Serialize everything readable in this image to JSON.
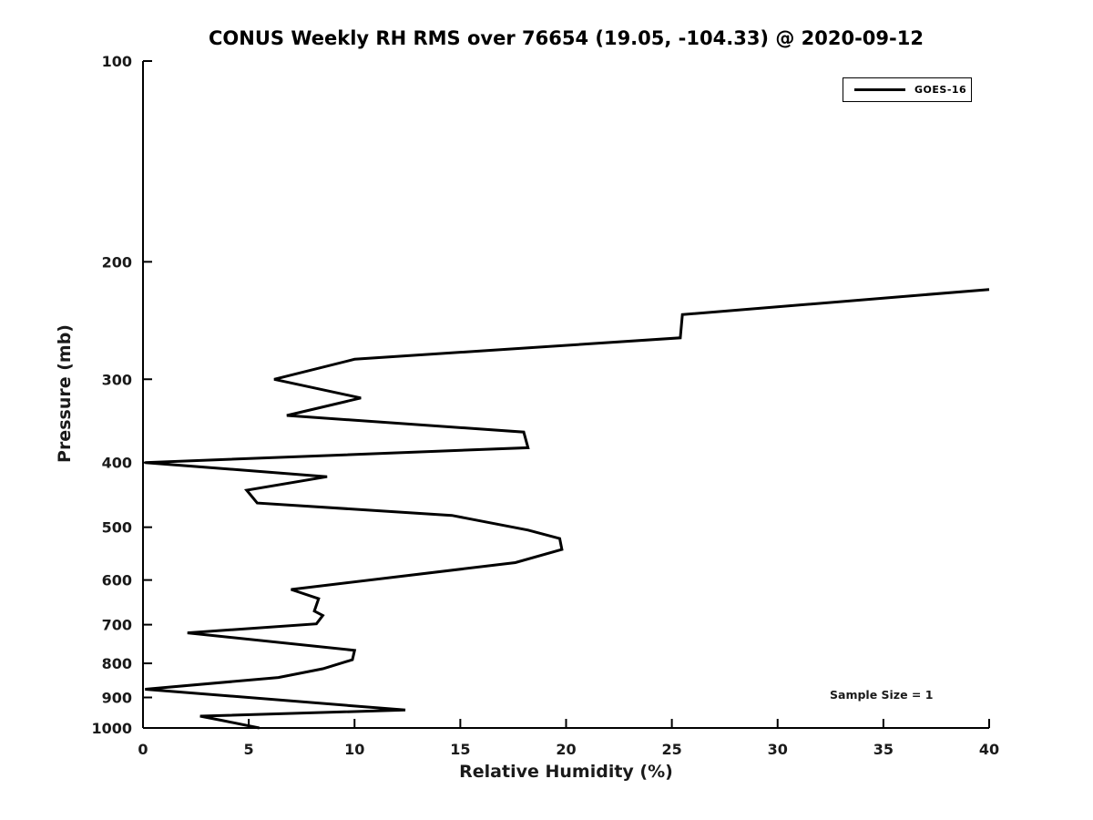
{
  "chart_data": {
    "type": "line",
    "title": "CONUS Weekly RH RMS over 76654 (19.05, -104.33) @ 2020-09-12",
    "xlabel": "Relative Humidity (%)",
    "ylabel": "Pressure (mb)",
    "xlim": [
      0,
      40
    ],
    "ylim": [
      100,
      1000
    ],
    "y_scale": "log",
    "y_direction": "pressure-increases-downward",
    "grid": false,
    "legend_position": "upper right",
    "x_ticks": [
      0,
      5,
      10,
      15,
      20,
      25,
      30,
      35,
      40
    ],
    "y_ticks": [
      100,
      200,
      300,
      400,
      500,
      600,
      700,
      800,
      900,
      1000
    ],
    "line_color": "#000000",
    "point_format": "[pressure_mb, relative_humidity_percent]",
    "sample_size": 1,
    "annotations": [
      "Sample Size = 1"
    ],
    "series": [
      {
        "name": "GOES-16",
        "color": "#000000",
        "points": [
          [
            220,
            40.0
          ],
          [
            240,
            25.5
          ],
          [
            260,
            25.4
          ],
          [
            280,
            10.0
          ],
          [
            300,
            6.2
          ],
          [
            320,
            10.3
          ],
          [
            340,
            6.8
          ],
          [
            360,
            18.0
          ],
          [
            380,
            18.2
          ],
          [
            400,
            0.1
          ],
          [
            420,
            8.7
          ],
          [
            440,
            4.9
          ],
          [
            460,
            5.4
          ],
          [
            480,
            14.6
          ],
          [
            505,
            18.2
          ],
          [
            520,
            19.7
          ],
          [
            540,
            19.8
          ],
          [
            565,
            17.6
          ],
          [
            620,
            7.0
          ],
          [
            640,
            8.3
          ],
          [
            668,
            8.1
          ],
          [
            678,
            8.5
          ],
          [
            698,
            8.2
          ],
          [
            720,
            2.1
          ],
          [
            765,
            10.0
          ],
          [
            790,
            9.9
          ],
          [
            815,
            8.5
          ],
          [
            840,
            6.4
          ],
          [
            875,
            0.1
          ],
          [
            940,
            12.4
          ],
          [
            960,
            2.7
          ],
          [
            975,
            3.8
          ],
          [
            1000,
            5.5
          ]
        ]
      }
    ]
  }
}
